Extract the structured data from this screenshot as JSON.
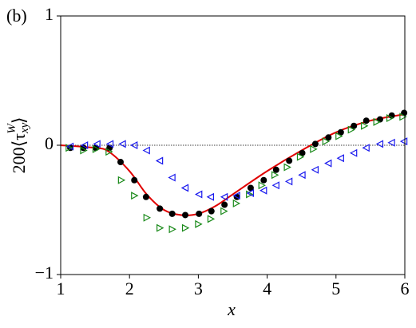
{
  "chart_data": {
    "type": "scatter",
    "panel_label": "(b)",
    "xlabel": "x",
    "ylabel": {
      "main": "200⟨τ",
      "sub": "xy",
      "sup": "W",
      "close": "⟩"
    },
    "xlim": [
      1,
      6
    ],
    "ylim": [
      -1,
      1
    ],
    "xticks": [
      1,
      2,
      3,
      4,
      5,
      6
    ],
    "yticks": [
      {
        "value": -1,
        "label": "−1"
      },
      0,
      1
    ],
    "reference_line": {
      "y": 0,
      "color": "#000000"
    },
    "series": [
      {
        "kind": "line",
        "color": "#e00000",
        "x": [
          1,
          1.5,
          1.7,
          2,
          2.25,
          2.5,
          2.75,
          3,
          3.25,
          3.5,
          4,
          4.5,
          5,
          5.5,
          6
        ],
        "values": [
          0,
          -0.02,
          -0.05,
          -0.2,
          -0.38,
          -0.5,
          -0.54,
          -0.53,
          -0.47,
          -0.38,
          -0.2,
          -0.04,
          0.1,
          0.19,
          0.24
        ]
      },
      {
        "kind": "circle",
        "color": "#000000",
        "x": [
          1.14,
          1.33,
          1.51,
          1.71,
          1.87,
          2.07,
          2.24,
          2.44,
          2.62,
          2.81,
          3.01,
          3.19,
          3.38,
          3.56,
          3.76,
          3.95,
          4.13,
          4.32,
          4.51,
          4.7,
          4.89,
          5.07,
          5.26,
          5.44,
          5.64,
          5.81,
          5.99
        ],
        "values": [
          -0.02,
          -0.02,
          -0.02,
          -0.02,
          -0.13,
          -0.27,
          -0.4,
          -0.49,
          -0.53,
          -0.54,
          -0.53,
          -0.51,
          -0.46,
          -0.4,
          -0.33,
          -0.27,
          -0.19,
          -0.12,
          -0.06,
          0.01,
          0.06,
          0.1,
          0.15,
          0.19,
          0.2,
          0.23,
          0.25
        ]
      },
      {
        "kind": "triangle-right",
        "color": "#1a8a1a",
        "x": [
          1.12,
          1.33,
          1.51,
          1.7,
          1.88,
          2.07,
          2.25,
          2.44,
          2.62,
          2.81,
          3.0,
          3.18,
          3.37,
          3.55,
          3.74,
          3.92,
          4.11,
          4.29,
          4.48,
          4.67,
          4.85,
          5.04,
          5.22,
          5.41,
          5.59,
          5.78,
          5.97
        ],
        "values": [
          -0.02,
          -0.04,
          -0.03,
          -0.05,
          -0.27,
          -0.39,
          -0.56,
          -0.64,
          -0.65,
          -0.64,
          -0.61,
          -0.57,
          -0.51,
          -0.45,
          -0.38,
          -0.31,
          -0.23,
          -0.17,
          -0.09,
          -0.03,
          0.03,
          0.07,
          0.12,
          0.15,
          0.18,
          0.21,
          0.22
        ]
      },
      {
        "kind": "triangle-left",
        "color": "#1a1aee",
        "x": [
          1.14,
          1.35,
          1.53,
          1.72,
          1.9,
          2.07,
          2.25,
          2.44,
          2.62,
          2.81,
          3.01,
          3.18,
          3.38,
          3.56,
          3.76,
          3.95,
          4.13,
          4.32,
          4.51,
          4.7,
          4.89,
          5.07,
          5.26,
          5.44,
          5.64,
          5.81,
          5.99
        ],
        "values": [
          -0.01,
          0,
          0.01,
          0.01,
          0.01,
          0,
          -0.04,
          -0.12,
          -0.25,
          -0.33,
          -0.38,
          -0.4,
          -0.4,
          -0.39,
          -0.37,
          -0.35,
          -0.31,
          -0.28,
          -0.23,
          -0.19,
          -0.14,
          -0.1,
          -0.06,
          -0.02,
          0.01,
          0.02,
          0.03
        ]
      }
    ]
  }
}
